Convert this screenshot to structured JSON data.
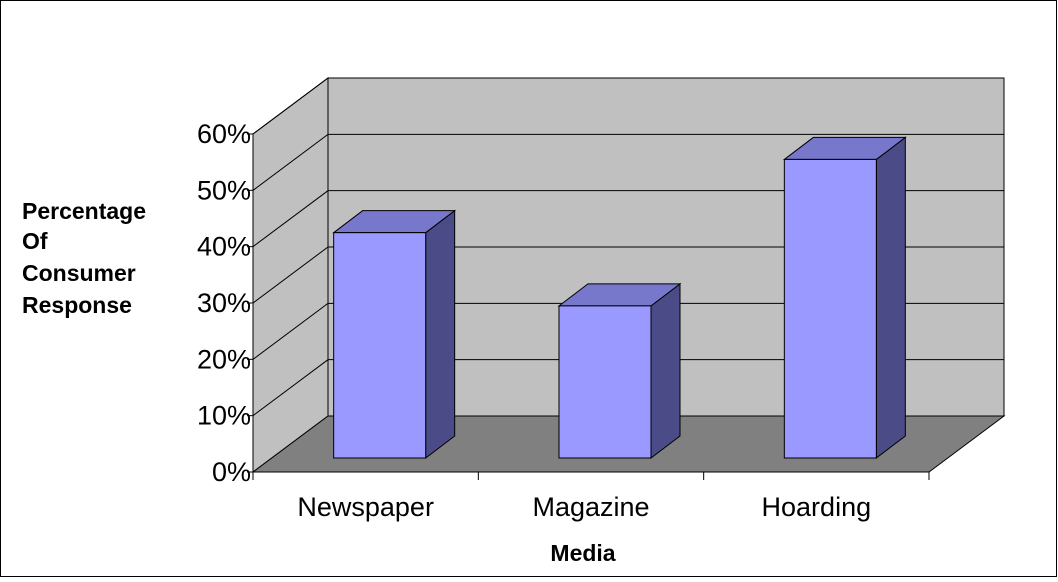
{
  "chart_data": {
    "type": "bar",
    "title": "",
    "categories": [
      "Newspaper",
      "Magazine",
      "Hoarding"
    ],
    "values": [
      40,
      27,
      53
    ],
    "xlabel": "Media",
    "ylabel_lines": [
      "Percentage",
      "Of",
      "Consumer",
      "Response"
    ],
    "yticks": [
      "0%",
      "10%",
      "20%",
      "30%",
      "40%",
      "50%",
      "60%"
    ],
    "ylim": [
      0,
      60
    ],
    "grid": true,
    "legend": "none",
    "style": "3d-column",
    "colors": {
      "bar_front": "#9999ff",
      "bar_top": "#7777cc",
      "bar_side": "#4b4b88",
      "back_wall": "#c0c0c0",
      "side_wall": "#c0c0c0",
      "floor": "#808080",
      "gridline": "#000000"
    }
  }
}
